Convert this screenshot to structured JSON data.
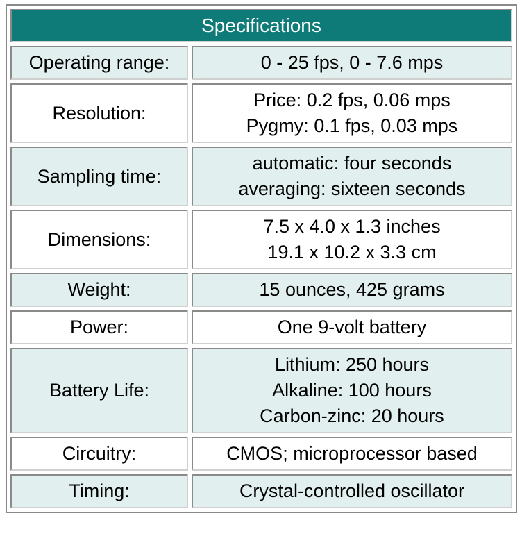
{
  "table": {
    "title": "Specifications",
    "rows": [
      {
        "label": "Operating range:",
        "lines": [
          "0 - 25 fps, 0 - 7.6 mps"
        ]
      },
      {
        "label": "Resolution:",
        "lines": [
          "Price: 0.2 fps, 0.06 mps",
          "Pygmy: 0.1 fps, 0.03 mps"
        ]
      },
      {
        "label": "Sampling time:",
        "lines": [
          "automatic: four seconds",
          "averaging: sixteen seconds"
        ]
      },
      {
        "label": "Dimensions:",
        "lines": [
          "7.5 x 4.0 x 1.3 inches",
          "19.1 x 10.2 x 3.3 cm"
        ]
      },
      {
        "label": "Weight:",
        "lines": [
          "15 ounces, 425 grams"
        ]
      },
      {
        "label": "Power:",
        "lines": [
          "One 9-volt battery"
        ]
      },
      {
        "label": "Battery Life:",
        "lines": [
          "Lithium: 250 hours",
          "Alkaline: 100 hours",
          "Carbon-zinc: 20 hours"
        ]
      },
      {
        "label": "Circuitry:",
        "lines": [
          "CMOS; microprocessor based"
        ]
      },
      {
        "label": "Timing:",
        "lines": [
          "Crystal-controlled oscillator"
        ]
      }
    ]
  },
  "colors": {
    "header_background": "#0f7b78",
    "header_text": "#ffffff",
    "shaded_row": "#e1f0ef",
    "plain_row": "#ffffff",
    "border": "#8a8a8a"
  }
}
